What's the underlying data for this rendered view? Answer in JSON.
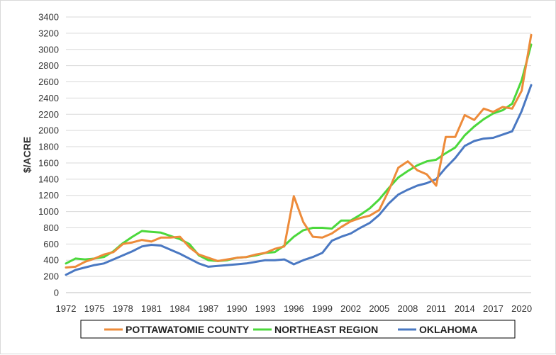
{
  "chart_data": {
    "type": "line",
    "title": "",
    "xlabel": "",
    "ylabel": "$/ACRE",
    "xlim": [
      1972,
      2021
    ],
    "ylim": [
      0,
      3400
    ],
    "y_ticks": [
      0,
      200,
      400,
      600,
      800,
      1000,
      1200,
      1400,
      1600,
      1800,
      2000,
      2200,
      2400,
      2600,
      2800,
      3000,
      3200,
      3400
    ],
    "x_ticks": [
      1972,
      1975,
      1978,
      1981,
      1984,
      1987,
      1990,
      1993,
      1996,
      1999,
      2002,
      2005,
      2008,
      2011,
      2014,
      2017,
      2020
    ],
    "grid": "horizontal",
    "legend": "bottom",
    "x": [
      1972,
      1973,
      1974,
      1975,
      1976,
      1977,
      1978,
      1979,
      1980,
      1981,
      1982,
      1983,
      1984,
      1985,
      1986,
      1987,
      1988,
      1989,
      1990,
      1991,
      1992,
      1993,
      1994,
      1995,
      1996,
      1997,
      1998,
      1999,
      2000,
      2001,
      2002,
      2003,
      2004,
      2005,
      2006,
      2007,
      2008,
      2009,
      2010,
      2011,
      2012,
      2013,
      2014,
      2015,
      2016,
      2017,
      2018,
      2019,
      2020,
      2021
    ],
    "series": [
      {
        "name": "POTTAWATOMIE COUNTY",
        "color": "#ed8b3a",
        "values": [
          310,
          320,
          380,
          420,
          470,
          500,
          600,
          620,
          650,
          630,
          680,
          680,
          690,
          560,
          470,
          430,
          390,
          410,
          430,
          440,
          470,
          490,
          540,
          570,
          1190,
          870,
          690,
          680,
          730,
          810,
          880,
          920,
          950,
          1020,
          1260,
          1540,
          1620,
          1510,
          1460,
          1320,
          1920,
          1920,
          2190,
          2130,
          2270,
          2230,
          2290,
          2270,
          2490,
          3180
        ]
      },
      {
        "name": "NORTHEAST REGION",
        "color": "#4cd83c",
        "values": [
          360,
          420,
          410,
          420,
          440,
          510,
          610,
          690,
          760,
          750,
          740,
          700,
          660,
          600,
          460,
          400,
          390,
          400,
          430,
          440,
          460,
          490,
          500,
          580,
          690,
          770,
          800,
          800,
          790,
          890,
          890,
          960,
          1040,
          1150,
          1290,
          1420,
          1500,
          1570,
          1620,
          1640,
          1720,
          1790,
          1940,
          2050,
          2140,
          2210,
          2250,
          2330,
          2620,
          3060
        ]
      },
      {
        "name": "OKLAHOMA",
        "color": "#4a78c2",
        "values": [
          220,
          280,
          310,
          340,
          360,
          410,
          460,
          510,
          570,
          590,
          580,
          530,
          480,
          420,
          360,
          320,
          330,
          340,
          350,
          360,
          380,
          400,
          400,
          410,
          350,
          400,
          440,
          490,
          640,
          690,
          730,
          800,
          860,
          960,
          1100,
          1210,
          1270,
          1320,
          1350,
          1400,
          1540,
          1660,
          1810,
          1870,
          1900,
          1910,
          1950,
          1990,
          2240,
          2560
        ]
      }
    ]
  }
}
